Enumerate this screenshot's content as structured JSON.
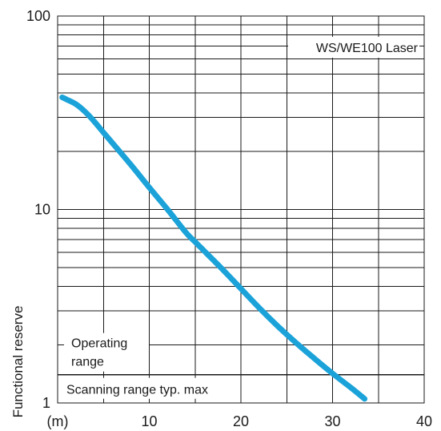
{
  "chart_data": {
    "type": "line",
    "title": "WS/WE100 Laser",
    "ylabel": "Functional reserve",
    "x_unit": "(m)",
    "x_ticks": [
      "10",
      "20",
      "30",
      "40"
    ],
    "y_ticks": [
      "1",
      "10",
      "100"
    ],
    "x_scale": "linear",
    "y_scale": "log",
    "xlim": [
      0,
      40
    ],
    "ylim": [
      1,
      100
    ],
    "grid": true,
    "series": [
      {
        "color": "#1ba3d9",
        "x": [
          0.5,
          1,
          2,
          3,
          4,
          5,
          6,
          8,
          10,
          12,
          14,
          15,
          16,
          18,
          20,
          22,
          24,
          26,
          28,
          30,
          32,
          33.5
        ],
        "y": [
          38,
          37,
          35,
          32,
          28.5,
          25,
          22,
          17,
          13,
          10,
          7.6,
          6.8,
          6.1,
          4.9,
          3.9,
          3.1,
          2.5,
          2.05,
          1.7,
          1.42,
          1.2,
          1.05
        ]
      }
    ],
    "annotations": {
      "operating_range": [
        "Operating",
        "range"
      ],
      "threshold_value": 1.4,
      "scanning_range": "Scanning range typ. max"
    }
  }
}
